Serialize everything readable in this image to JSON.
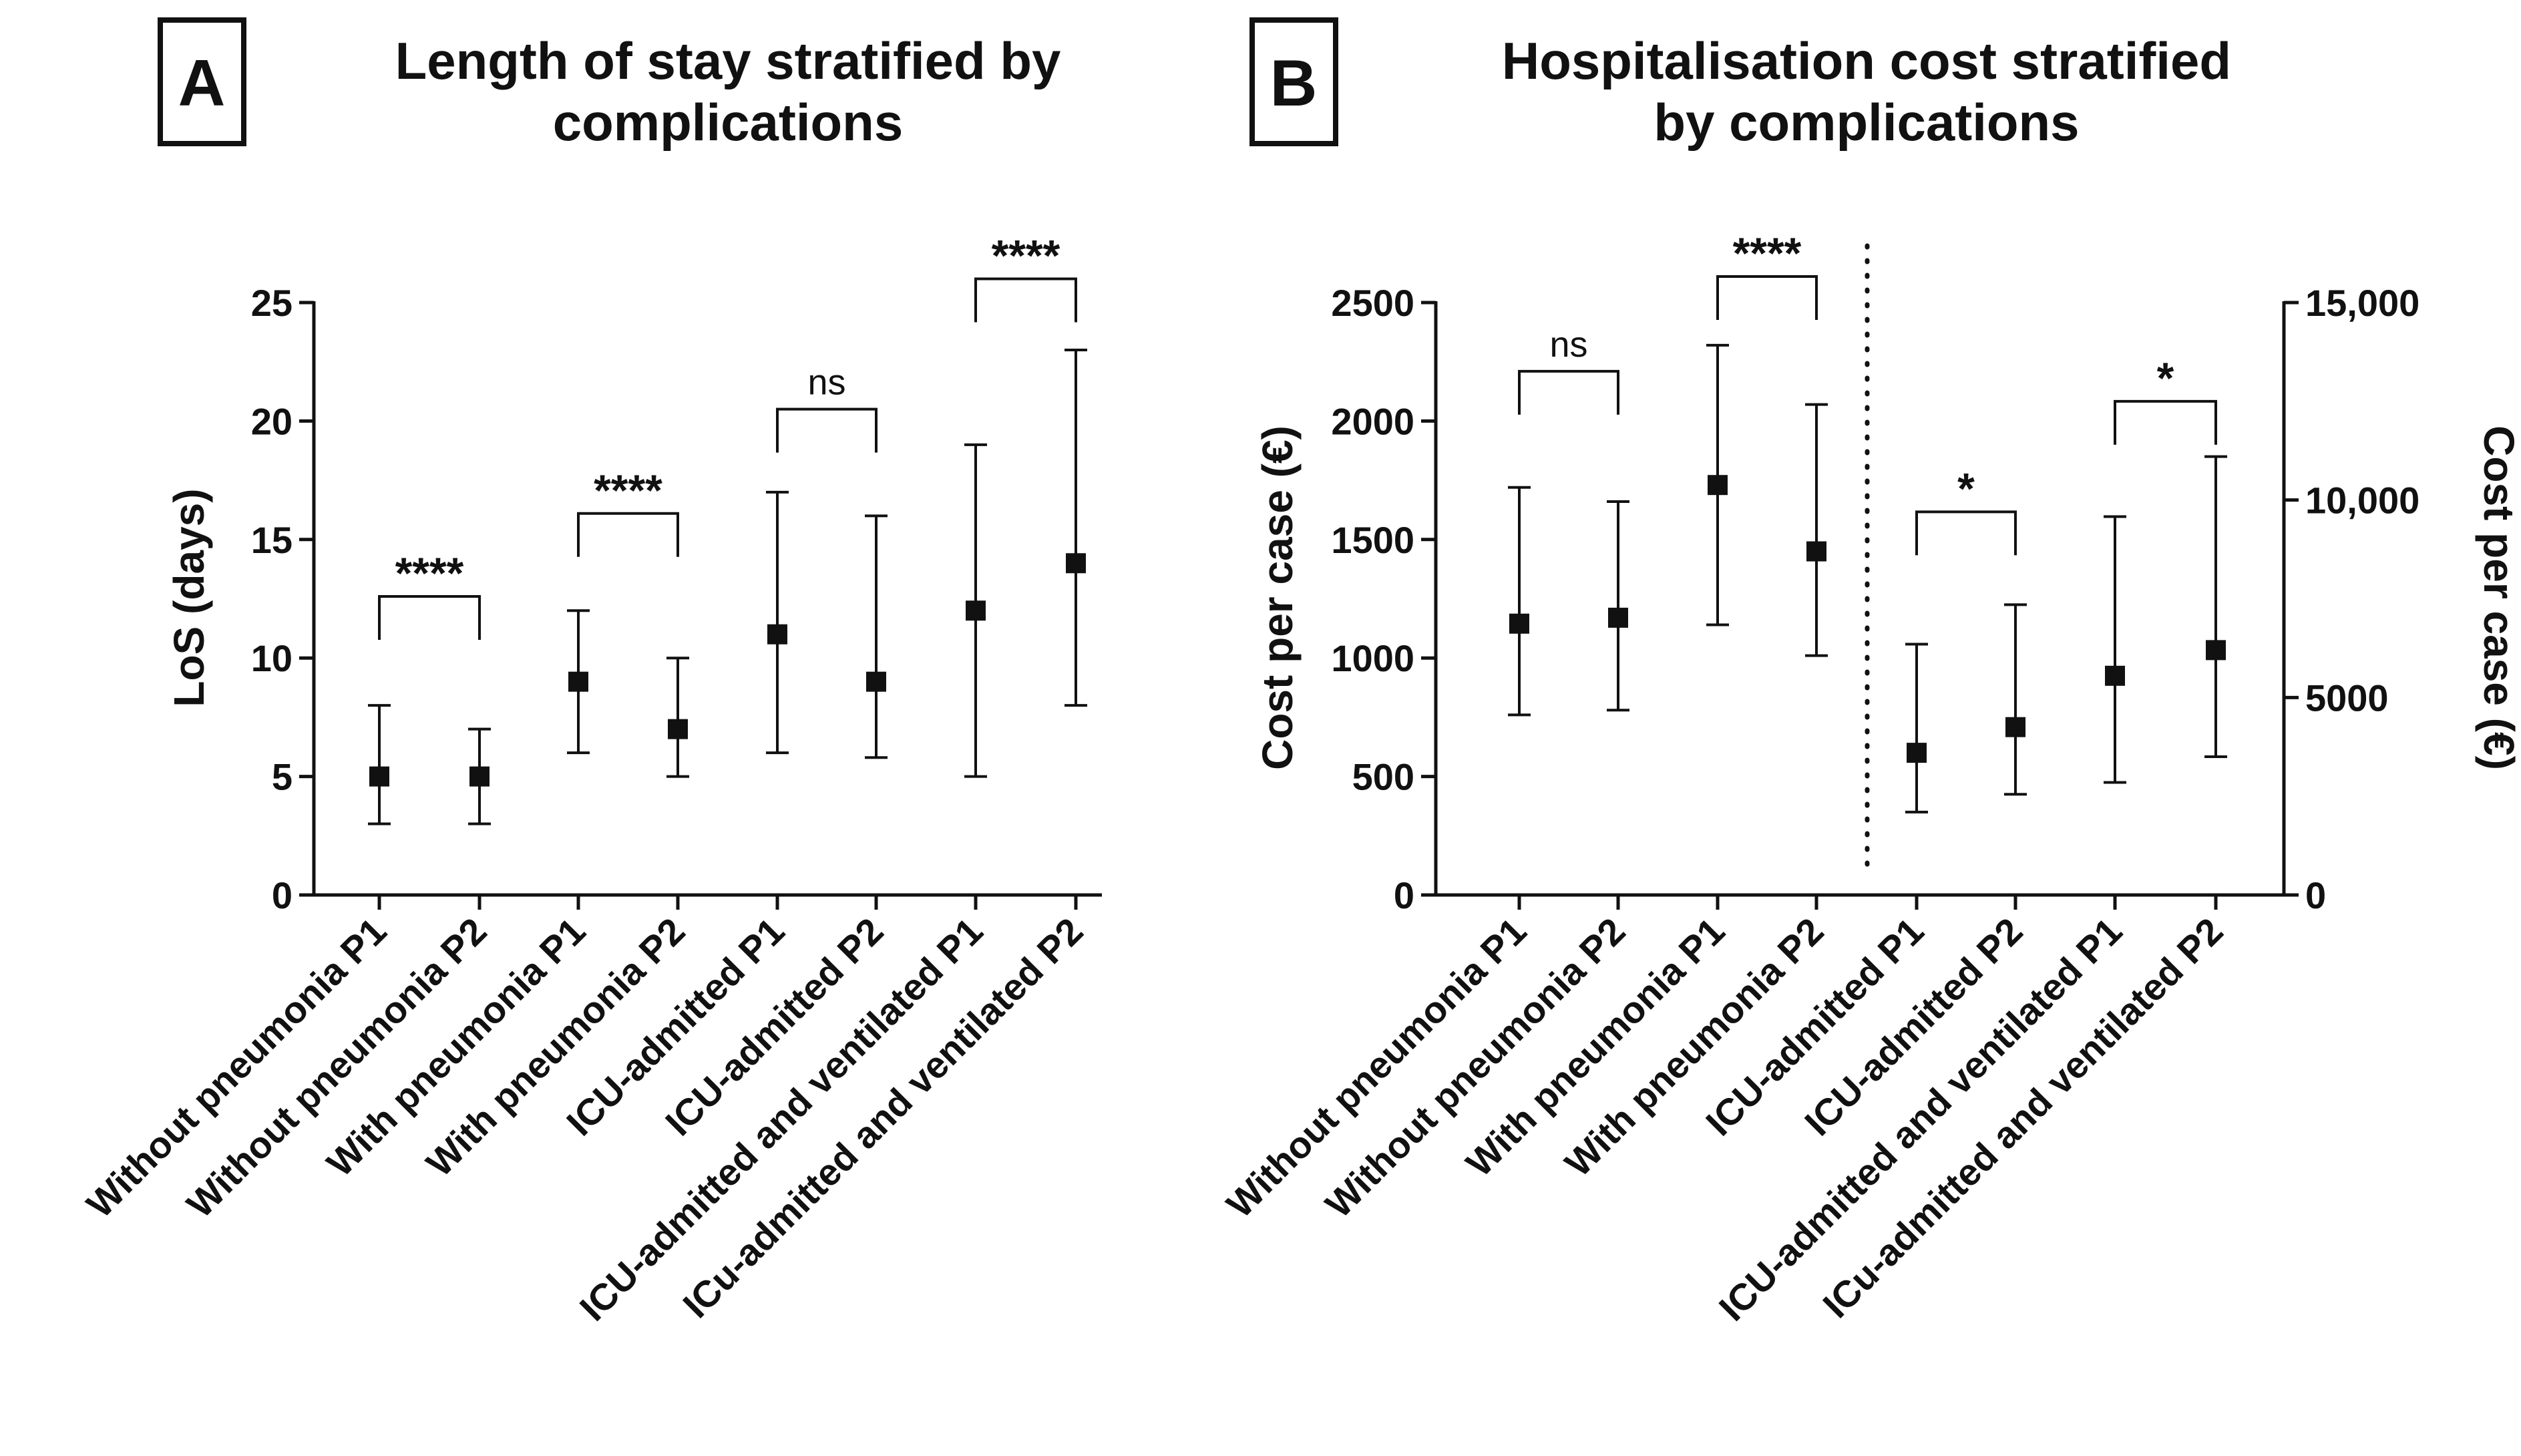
{
  "chart_data": [
    {
      "panel": "A",
      "type": "scatter",
      "subtype": "median-with-error-bars",
      "title_lines": [
        "Length of stay stratified by",
        "complications"
      ],
      "ylabel": "LoS (days)",
      "ylim": [
        0,
        25
      ],
      "yticks": [
        "0",
        "5",
        "10",
        "15",
        "20",
        "25"
      ],
      "categories": [
        "Without pneumonia P1",
        "Without pneumonia P2",
        "With pneumonia P1",
        "With pneumonia P2",
        "ICU-admitted P1",
        "ICU-admitted P2",
        "ICU-admitted and ventilated P1",
        "ICu-admitted and ventilated P2"
      ],
      "points": [
        {
          "center": 5,
          "low": 3,
          "high": 8
        },
        {
          "center": 5,
          "low": 3,
          "high": 7
        },
        {
          "center": 9,
          "low": 6,
          "high": 12
        },
        {
          "center": 7,
          "low": 5,
          "high": 10
        },
        {
          "center": 11,
          "low": 6,
          "high": 17
        },
        {
          "center": 9,
          "low": 5.8,
          "high": 16
        },
        {
          "center": 12,
          "low": 5,
          "high": 19
        },
        {
          "center": 14,
          "low": 8,
          "high": 23
        }
      ],
      "comparisons": [
        {
          "from": 0,
          "to": 1,
          "label": "****",
          "kind": "star",
          "bar_y": 12.6
        },
        {
          "from": 2,
          "to": 3,
          "label": "****",
          "kind": "star",
          "bar_y": 16.1
        },
        {
          "from": 4,
          "to": 5,
          "label": "ns",
          "kind": "ns",
          "bar_y": 20.5
        },
        {
          "from": 6,
          "to": 7,
          "label": "****",
          "kind": "star",
          "bar_y": 26.0
        }
      ]
    },
    {
      "panel": "B",
      "type": "scatter",
      "subtype": "median-with-error-bars",
      "title_lines": [
        "Hospitalisation cost stratified",
        "by complications"
      ],
      "ylabel_left": "Cost per case (€)",
      "ylabel_right": "Cost per case (€)",
      "ylim_left": [
        0,
        2500
      ],
      "ylim_right": [
        0,
        15000
      ],
      "yticks_left": [
        "0",
        "500",
        "1000",
        "1500",
        "2000",
        "2500"
      ],
      "yticks_right": [
        "0",
        "5000",
        "10,000",
        "15,000"
      ],
      "divider": "dotted line between ICU groups and non-ICU groups (points 1-4 left axis, 5-8 right axis)",
      "categories": [
        "Without pneumonia P1",
        "Without pneumonia P2",
        "With pneumonia P1",
        "With pneumonia P2",
        "ICU-admitted P1",
        "ICU-admitted P2",
        "ICU-admitted and ventilated P1",
        "ICu-admitted and ventilated P2"
      ],
      "points": [
        {
          "axis": "left",
          "center": 1145,
          "low": 760,
          "high": 1720
        },
        {
          "axis": "left",
          "center": 1170,
          "low": 780,
          "high": 1660
        },
        {
          "axis": "left",
          "center": 1730,
          "low": 1140,
          "high": 2320
        },
        {
          "axis": "left",
          "center": 1450,
          "low": 1010,
          "high": 2070
        },
        {
          "axis": "right",
          "center": 3600,
          "low": 2100,
          "high": 6350
        },
        {
          "axis": "right",
          "center": 4250,
          "low": 2550,
          "high": 7350
        },
        {
          "axis": "right",
          "center": 5550,
          "low": 2850,
          "high": 9580
        },
        {
          "axis": "right",
          "center": 6200,
          "low": 3500,
          "high": 11100
        }
      ],
      "comparisons": [
        {
          "from": 0,
          "to": 1,
          "label": "ns",
          "kind": "ns",
          "axis": "left",
          "bar_y": 2210
        },
        {
          "from": 2,
          "to": 3,
          "label": "****",
          "kind": "star",
          "axis": "left",
          "bar_y": 2610
        },
        {
          "from": 4,
          "to": 5,
          "label": "*",
          "kind": "star",
          "axis": "right",
          "bar_y": 9700
        },
        {
          "from": 6,
          "to": 7,
          "label": "*",
          "kind": "star",
          "axis": "right",
          "bar_y": 12500
        }
      ]
    }
  ]
}
